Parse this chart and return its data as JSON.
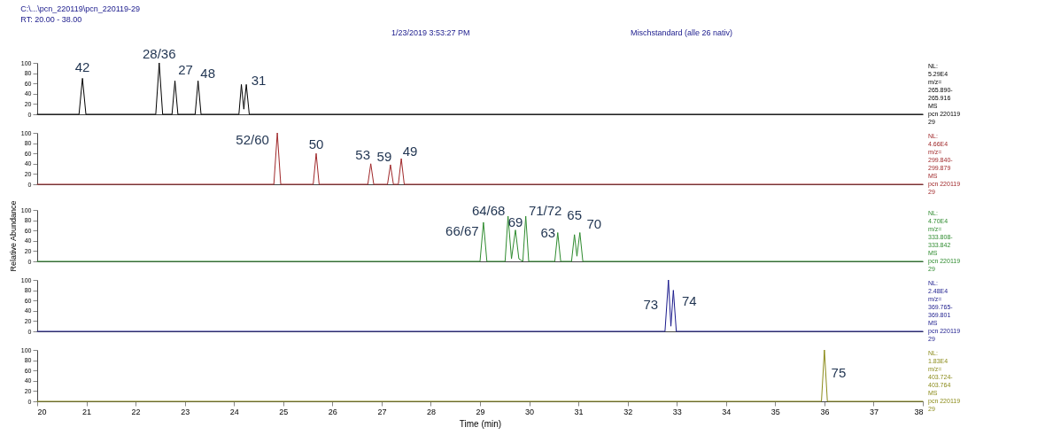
{
  "chart_data": [
    {
      "type": "line",
      "title": "C:\\...\\pcn_220119\\pcn_220119-29",
      "subtitle": "RT: 20.00 - 38.00",
      "xlim": [
        20,
        38
      ],
      "ylim": [
        0,
        100
      ],
      "yticks": [
        0,
        20,
        40,
        60,
        80,
        100
      ],
      "tick_labels": "y",
      "grid": false,
      "series": [
        {
          "color": "#000000",
          "x": [
            20,
            20.85,
            20.92,
            20.99,
            22.41,
            22.48,
            22.55,
            22.74,
            22.8,
            22.86,
            23.21,
            23.27,
            23.33,
            24.1,
            24.15,
            24.2,
            24.25,
            24.31,
            38
          ],
          "values": [
            0,
            0,
            70,
            0,
            0,
            100,
            0,
            0,
            65,
            0,
            0,
            65,
            0,
            0,
            58,
            10,
            58,
            0,
            0
          ]
        }
      ],
      "annotations": [
        "1/23/2019 3:53:27 PM",
        "Mischstandard (alle 26 nativ)",
        "NL:\n5.29E4\nm/z=\n265.890-\n265.916\nMS\npcn 220119\n29",
        {
          "text": "42",
          "x": 20.92,
          "y": 70
        },
        {
          "text": "28/36",
          "x": 22.48,
          "y": 100
        },
        {
          "text": "27",
          "x": 22.8,
          "y": 65
        },
        {
          "text": "48",
          "x": 23.27,
          "y": 65
        },
        {
          "text": "31",
          "x": 24.25,
          "y": 58
        }
      ]
    },
    {
      "type": "line",
      "xlim": [
        20,
        38
      ],
      "ylim": [
        0,
        100
      ],
      "yticks": [
        0,
        20,
        40,
        60,
        80,
        100
      ],
      "tick_labels": "y",
      "grid": false,
      "series": [
        {
          "color": "#a0282a",
          "x": [
            20,
            24.81,
            24.88,
            24.95,
            25.61,
            25.67,
            25.73,
            26.72,
            26.78,
            26.84,
            27.12,
            27.18,
            27.24,
            27.34,
            27.4,
            27.46,
            38
          ],
          "values": [
            0,
            0,
            100,
            0,
            0,
            60,
            0,
            0,
            40,
            0,
            0,
            38,
            0,
            0,
            50,
            0,
            0
          ]
        }
      ],
      "annotations": [
        "NL:\n4.66E4\nm/z=\n299.840-\n299.879\nMS\npcn 220119\n29",
        {
          "text": "52/60",
          "x": 24.88,
          "y": 100
        },
        {
          "text": "50",
          "x": 25.67,
          "y": 60
        },
        {
          "text": "53",
          "x": 26.78,
          "y": 40
        },
        {
          "text": "59",
          "x": 27.18,
          "y": 38
        },
        {
          "text": "49",
          "x": 27.4,
          "y": 50
        }
      ]
    },
    {
      "type": "line",
      "xlim": [
        20,
        38
      ],
      "ylim": [
        0,
        100
      ],
      "yticks": [
        0,
        20,
        40,
        60,
        80,
        100
      ],
      "tick_labels": "y",
      "grid": false,
      "ylabel": "Relative Abundance",
      "series": [
        {
          "color": "#2e8b2e",
          "x": [
            20,
            29.0,
            29.07,
            29.14,
            29.51,
            29.57,
            29.64,
            29.72,
            29.79,
            29.87,
            29.93,
            29.99,
            30.52,
            30.58,
            30.64,
            30.86,
            30.92,
            30.97,
            31.03,
            31.09,
            38
          ],
          "values": [
            0,
            0,
            76,
            0,
            0,
            88,
            5,
            61,
            5,
            0,
            88,
            0,
            0,
            56,
            0,
            0,
            52,
            10,
            56,
            0,
            0
          ]
        }
      ],
      "annotations": [
        "NL:\n4.70E4\nm/z=\n333.808-\n333.842\nMS\npcn 220119\n29",
        {
          "text": "66/67",
          "x": 29.07,
          "y": 76
        },
        {
          "text": "64/68",
          "x": 29.57,
          "y": 88
        },
        {
          "text": "69",
          "x": 29.72,
          "y": 61
        },
        {
          "text": "71/72",
          "x": 29.93,
          "y": 88
        },
        {
          "text": "63",
          "x": 30.58,
          "y": 56
        },
        {
          "text": "65",
          "x": 30.92,
          "y": 52
        },
        {
          "text": "70",
          "x": 31.03,
          "y": 56
        }
      ]
    },
    {
      "type": "line",
      "xlim": [
        20,
        38
      ],
      "ylim": [
        0,
        100
      ],
      "yticks": [
        0,
        20,
        40,
        60,
        80,
        100
      ],
      "tick_labels": "y",
      "grid": false,
      "series": [
        {
          "color": "#1a1a8c",
          "x": [
            20,
            32.76,
            32.83,
            32.88,
            32.93,
            32.99,
            38
          ],
          "values": [
            0,
            0,
            100,
            10,
            80,
            0,
            0
          ]
        }
      ],
      "annotations": [
        "NL:\n2.48E4\nm/z=\n369.765-\n369.801\nMS\npcn 220119\n29",
        {
          "text": "73",
          "x": 32.83,
          "y": 100
        },
        {
          "text": "74",
          "x": 32.93,
          "y": 80
        }
      ]
    },
    {
      "type": "line",
      "xlim": [
        20,
        38
      ],
      "ylim": [
        0,
        100
      ],
      "yticks": [
        0,
        20,
        40,
        60,
        80,
        100
      ],
      "xticks": [
        20,
        21,
        22,
        23,
        24,
        25,
        26,
        27,
        28,
        29,
        30,
        31,
        32,
        33,
        34,
        35,
        36,
        37,
        38
      ],
      "xlabel": "Time (min)",
      "grid": false,
      "series": [
        {
          "color": "#8b8b1a",
          "x": [
            20,
            35.94,
            36.0,
            36.06,
            38
          ],
          "values": [
            0,
            0,
            100,
            0,
            0
          ]
        }
      ],
      "annotations": [
        "NL:\n1.83E4\nm/z=\n403.724-\n403.764\nMS\npcn 220119\n29",
        {
          "text": "75",
          "x": 36.0,
          "y": 100
        }
      ]
    }
  ]
}
